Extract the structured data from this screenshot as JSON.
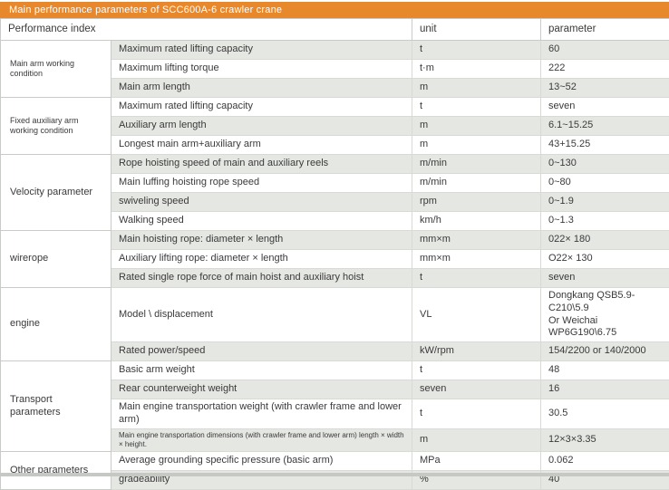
{
  "title": "Main performance parameters of SCC600A-6 crawler crane",
  "colors": {
    "accent": "#E8882C",
    "row_shade": "#E5E7E3",
    "border": "#C9CBC8",
    "title_text": "#FFFFFF"
  },
  "table": {
    "headers": {
      "index": "Performance index",
      "unit": "unit",
      "parameter": "parameter"
    },
    "groups": [
      {
        "label": "Main arm working condition",
        "rows": [
          {
            "index": "Maximum rated lifting capacity",
            "unit": "t",
            "parameter": "60"
          },
          {
            "index": "Maximum lifting torque",
            "unit": "t·m",
            "parameter": "222"
          },
          {
            "index": "Main arm length",
            "unit": "m",
            "parameter": "13~52"
          }
        ]
      },
      {
        "label": "Fixed auxiliary arm working condition",
        "rows": [
          {
            "index": "Maximum rated lifting capacity",
            "unit": "t",
            "parameter": "seven"
          },
          {
            "index": "Auxiliary arm length",
            "unit": "m",
            "parameter": "6.1~15.25"
          },
          {
            "index": "Longest main arm+auxiliary arm",
            "unit": "m",
            "parameter": "43+15.25"
          }
        ]
      },
      {
        "label": "Velocity parameter",
        "rows": [
          {
            "index": "Rope hoisting speed of main and auxiliary reels",
            "unit": "m/min",
            "parameter": "0~130"
          },
          {
            "index": "Main luffing hoisting rope speed",
            "unit": "m/min",
            "parameter": "0~80"
          },
          {
            "index": "swiveling speed",
            "unit": "rpm",
            "parameter": "0~1.9"
          },
          {
            "index": "Walking speed",
            "unit": "km/h",
            "parameter": "0~1.3"
          }
        ]
      },
      {
        "label": "wirerope",
        "rows": [
          {
            "index": "Main hoisting rope: diameter × length",
            "unit": "mm×m",
            "parameter": "022× 180"
          },
          {
            "index": "Auxiliary lifting rope: diameter × length",
            "unit": "mm×m",
            "parameter": "O22× 130"
          },
          {
            "index": "Rated single rope force of main hoist and auxiliary hoist",
            "unit": "t",
            "parameter": "seven"
          }
        ]
      },
      {
        "label": "engine",
        "rows": [
          {
            "index": "Model \\ displacement",
            "unit": "VL",
            "parameter": [
              "Dongkang QSB5.9-C210\\5.9",
              "Or Weichai WP6G190\\6.75"
            ]
          },
          {
            "index": "Rated power/speed",
            "unit": "kW/rpm",
            "parameter": "154/2200 or 140/2000"
          }
        ]
      },
      {
        "label": "Transport parameters",
        "rows": [
          {
            "index": "Basic arm weight",
            "unit": "t",
            "parameter": "48"
          },
          {
            "index": "Rear counterweight weight",
            "unit": "seven",
            "parameter": "16"
          },
          {
            "index": "Main engine transportation weight (with crawler frame and lower arm)",
            "unit": "t",
            "parameter": "30.5"
          },
          {
            "index": "Main engine transportation dimensions (with crawler frame and lower arm) length × width × height.",
            "unit": "m",
            "parameter": "12×3×3.35"
          }
        ]
      },
      {
        "label": "Other parameters",
        "rows": [
          {
            "index": "Average grounding specific pressure (basic arm)",
            "unit": "MPa",
            "parameter": "0.062"
          },
          {
            "index": "gradeability",
            "unit": "%",
            "parameter": "40"
          }
        ]
      }
    ]
  }
}
